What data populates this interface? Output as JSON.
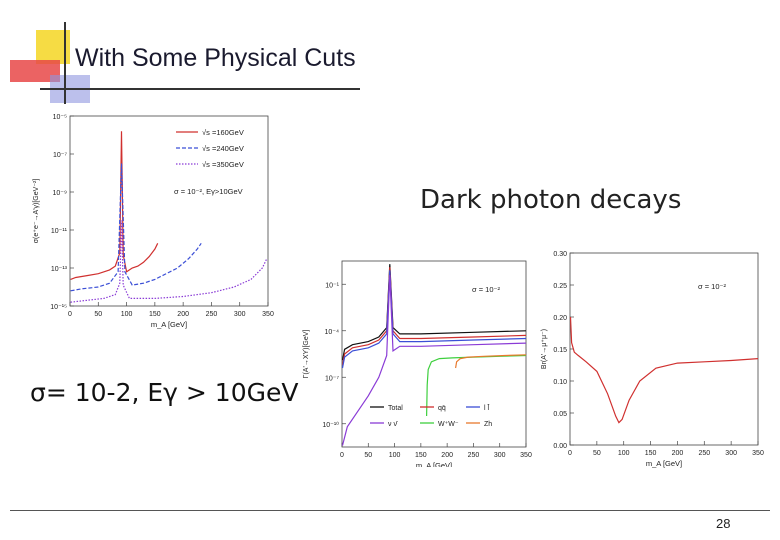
{
  "slide": {
    "title": "With Some Physical Cuts",
    "cut_text": "σ= 10-2, Eγ > 10GeV",
    "decays_heading": "Dark photon decays",
    "page_number": "28",
    "colors": {
      "red": "#d0302f",
      "blue": "#3b4fd6",
      "purple": "#8a3bd6",
      "black": "#111111",
      "green": "#3ecf3e",
      "orange": "#e87a2e",
      "gray": "#888888",
      "deco_yellow": "#f5d830",
      "deco_blue": "#6a75d8",
      "deco_red": "#e84848"
    }
  },
  "chart_data": [
    {
      "type": "line",
      "name": "cross-section",
      "ylabel": "σ(e⁺e⁻→A'γ)[GeV⁻²]",
      "xlabel": "m_A [GeV]",
      "xticks": [
        "0",
        "50",
        "100",
        "150",
        "200",
        "250",
        "300",
        "350"
      ],
      "yticks": [
        "10⁻⁵",
        "10⁻⁷",
        "10⁻⁹",
        "10⁻¹¹",
        "10⁻¹³",
        "10⁻¹⁵"
      ],
      "xlim": [
        0,
        350
      ],
      "ylim_log10": [
        -15,
        -5
      ],
      "legend": [
        "√s =160GeV",
        "√s =240GeV",
        "√s =350GeV"
      ],
      "annotation": "σ = 10⁻², Eγ>10GeV",
      "series": [
        {
          "name": "√s =160GeV",
          "color": "red",
          "style": "solid",
          "x": [
            1,
            10,
            30,
            50,
            70,
            80,
            88,
            91,
            94,
            100,
            110,
            120,
            130,
            140,
            150,
            155
          ],
          "y": [
            -13.6,
            -13.5,
            -13.4,
            -13.3,
            -13.1,
            -12.9,
            -12.2,
            -5.8,
            -12.3,
            -13.2,
            -13.0,
            -12.9,
            -12.7,
            -12.4,
            -12.0,
            -11.7
          ]
        },
        {
          "name": "√s =240GeV",
          "color": "blue",
          "style": "dashed",
          "x": [
            1,
            20,
            50,
            70,
            85,
            91,
            97,
            110,
            130,
            150,
            170,
            190,
            210,
            225,
            232
          ],
          "y": [
            -14.2,
            -14.1,
            -14.0,
            -13.8,
            -13.2,
            -7.5,
            -13.2,
            -13.9,
            -13.8,
            -13.6,
            -13.3,
            -13.0,
            -12.5,
            -12.0,
            -11.7
          ]
        },
        {
          "name": "√s =350GeV",
          "color": "purple",
          "style": "dotted",
          "x": [
            1,
            30,
            60,
            80,
            88,
            91,
            94,
            105,
            150,
            200,
            250,
            290,
            320,
            340,
            348
          ],
          "y": [
            -14.8,
            -14.7,
            -14.6,
            -14.4,
            -13.8,
            -10.5,
            -13.9,
            -14.6,
            -14.6,
            -14.5,
            -14.3,
            -14.0,
            -13.6,
            -13.0,
            -12.5
          ]
        }
      ]
    },
    {
      "type": "line",
      "name": "decay-widths",
      "ylabel": "Γ(A'→XY)[GeV]",
      "xlabel": "m_A [GeV]",
      "xticks": [
        "0",
        "50",
        "100",
        "150",
        "200",
        "250",
        "300",
        "350"
      ],
      "yticks": [
        "10⁻¹",
        "10⁻⁴",
        "10⁻⁷",
        "10⁻¹⁰"
      ],
      "xlim": [
        0,
        350
      ],
      "ylim_log10": [
        -11.5,
        0.5
      ],
      "annotation": "σ = 10⁻²",
      "legend": [
        "Total",
        "qq̄",
        "l l̄",
        "ν ν̄",
        "W⁺W⁻",
        "Zh"
      ],
      "series": [
        {
          "name": "Total",
          "color": "black",
          "x": [
            1,
            5,
            20,
            50,
            70,
            85,
            91,
            97,
            110,
            150,
            250,
            350
          ],
          "y": [
            -5.9,
            -5.2,
            -4.9,
            -4.7,
            -4.4,
            -3.8,
            0.3,
            -3.8,
            -4.2,
            -4.2,
            -4.1,
            -4.0
          ]
        },
        {
          "name": "qq̄",
          "color": "red",
          "x": [
            1,
            5,
            20,
            50,
            70,
            85,
            91,
            97,
            110,
            150,
            250,
            350
          ],
          "y": [
            -6.2,
            -5.5,
            -5.1,
            -4.9,
            -4.6,
            -4.0,
            0.1,
            -4.0,
            -4.5,
            -4.5,
            -4.4,
            -4.3
          ]
        },
        {
          "name": "l l̄",
          "color": "blue",
          "x": [
            1,
            5,
            20,
            50,
            70,
            85,
            91,
            97,
            110,
            150,
            250,
            350
          ],
          "y": [
            -6.4,
            -5.7,
            -5.3,
            -5.1,
            -4.8,
            -4.2,
            -0.1,
            -4.2,
            -4.7,
            -4.7,
            -4.6,
            -4.5
          ]
        },
        {
          "name": "ν ν̄",
          "color": "purple",
          "x": [
            1,
            10,
            30,
            50,
            70,
            85,
            91,
            97,
            110,
            150,
            250,
            350
          ],
          "y": [
            -11.4,
            -10.2,
            -9.2,
            -8.2,
            -7.0,
            -5.6,
            -0.4,
            -5.3,
            -5.0,
            -5.0,
            -4.9,
            -4.8
          ]
        },
        {
          "name": "W⁺W⁻",
          "color": "green",
          "x": [
            161,
            162,
            164,
            170,
            185,
            210,
            250,
            300,
            350
          ],
          "y": [
            -9.5,
            -7.5,
            -6.5,
            -6.0,
            -5.8,
            -5.75,
            -5.7,
            -5.65,
            -5.6
          ]
        },
        {
          "name": "Zh",
          "color": "orange",
          "x": [
            216,
            218,
            225,
            240,
            270,
            310,
            350
          ],
          "y": [
            -6.4,
            -6.0,
            -5.8,
            -5.7,
            -5.65,
            -5.6,
            -5.55
          ]
        }
      ]
    },
    {
      "type": "line",
      "name": "branching-ratio",
      "ylabel": "Br(A'→μ⁺μ⁻)",
      "xlabel": "m_A [GeV]",
      "xticks": [
        "0",
        "50",
        "100",
        "150",
        "200",
        "250",
        "300",
        "350"
      ],
      "yticks": [
        "0.00",
        "0.05",
        "0.10",
        "0.15",
        "0.20",
        "0.25",
        "0.30"
      ],
      "xlim": [
        0,
        350
      ],
      "ylim": [
        0,
        0.3
      ],
      "annotation": "σ = 10⁻²",
      "series": [
        {
          "name": "Br(A'→μ⁺μ⁻)",
          "color": "red",
          "x": [
            1,
            3,
            8,
            15,
            30,
            50,
            70,
            85,
            91,
            97,
            110,
            130,
            160,
            200,
            250,
            300,
            350
          ],
          "y": [
            0.2,
            0.16,
            0.145,
            0.14,
            0.13,
            0.115,
            0.08,
            0.045,
            0.035,
            0.04,
            0.07,
            0.1,
            0.12,
            0.128,
            0.13,
            0.132,
            0.135
          ]
        }
      ]
    }
  ]
}
